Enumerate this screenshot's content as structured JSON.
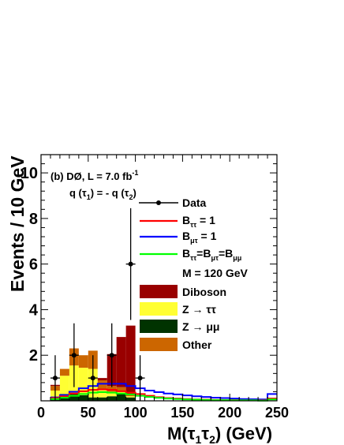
{
  "chart_data": {
    "type": "bar",
    "stacked": true,
    "annotation": {
      "line1": "(b) DØ, L = 7.0 fb",
      "line1_sup": "-1",
      "line2": "q (τ",
      "line2_sub1": "1",
      "line2_mid": ") = - q (τ",
      "line2_sub2": "2",
      "line2_end": ")"
    },
    "ylabel": "Events / 10 GeV",
    "xlabel": {
      "main": "M(τ",
      "sub1": "1",
      "mid": "τ",
      "sub2": "2",
      "end": ") (GeV)"
    },
    "xlim": [
      0,
      250
    ],
    "ylim": [
      0,
      10.8
    ],
    "x_ticks": [
      "0",
      "50",
      "100",
      "150",
      "200",
      "250"
    ],
    "y_ticks": [
      "2",
      "4",
      "6",
      "8",
      "10"
    ],
    "legend": {
      "placement": "right",
      "data_label": "Data",
      "btt": {
        "label": "B",
        "sub": "ττ",
        "end": " = 1",
        "color": "#ff0000"
      },
      "bmt": {
        "label": "B",
        "sub": "μτ",
        "end": " = 1",
        "color": "#0000ff"
      },
      "ball": {
        "label": "B",
        "sub1": "ττ",
        "mid1": "=B",
        "sub2": "μτ",
        "mid2": "=B",
        "sub3": "μμ",
        "color": "#00ff00"
      },
      "mass_label": "M = 120 GeV",
      "diboson": {
        "label": "Diboson",
        "color": "#990000"
      },
      "ztt": {
        "label": "Z → ττ",
        "color": "#ffff33"
      },
      "zmm": {
        "label": "Z → μμ",
        "color": "#003300"
      },
      "other": {
        "label": "Other",
        "color": "#cc6600"
      }
    },
    "bin_width": 10,
    "bin_low_edges": [
      10,
      20,
      30,
      40,
      50,
      60,
      70,
      80,
      90
    ],
    "stack_series": [
      {
        "name": "Z → μμ",
        "color": "#003300",
        "values": [
          0.1,
          0.3,
          0.3,
          0.25,
          0.15,
          0.15,
          0.2,
          0.3,
          0.15
        ]
      },
      {
        "name": "Z → ττ",
        "color": "#ffff33",
        "values": [
          0.35,
          0.8,
          1.25,
          1.2,
          1.25,
          0.35,
          0.2,
          0.1,
          0.05
        ]
      },
      {
        "name": "Other",
        "color": "#cc6600",
        "values": [
          0.2,
          0.3,
          0.75,
          0.55,
          0.8,
          0.4,
          0.25,
          0.2,
          0.1
        ]
      },
      {
        "name": "Diboson",
        "color": "#990000",
        "values": [
          0.05,
          0.0,
          0.0,
          0.0,
          0.0,
          0.1,
          1.4,
          2.2,
          3.0
        ]
      }
    ],
    "signal_series": [
      {
        "name": "Bμτ = 1",
        "color": "#0000ff",
        "x": [
          10,
          20,
          30,
          40,
          50,
          60,
          70,
          80,
          90,
          100,
          110,
          120,
          130,
          140,
          150,
          160,
          170,
          180,
          190,
          200,
          210,
          220,
          230,
          240,
          250
        ],
        "values": [
          0.15,
          0.25,
          0.4,
          0.55,
          0.65,
          0.75,
          0.75,
          0.75,
          0.65,
          0.55,
          0.45,
          0.38,
          0.32,
          0.28,
          0.24,
          0.2,
          0.17,
          0.14,
          0.12,
          0.1,
          0.08,
          0.07,
          0.06,
          0.3,
          0.3
        ]
      },
      {
        "name": "Bττ = 1",
        "color": "#ff0000",
        "x": [
          10,
          20,
          30,
          40,
          50,
          60,
          70,
          80,
          90,
          100,
          110,
          120,
          130,
          140,
          150,
          160,
          170,
          180,
          190,
          200,
          210,
          220,
          230,
          240,
          250
        ],
        "values": [
          0.12,
          0.2,
          0.32,
          0.42,
          0.48,
          0.5,
          0.48,
          0.42,
          0.36,
          0.3,
          0.22,
          0.16,
          0.12,
          0.1,
          0.08,
          0.06,
          0.05,
          0.04,
          0.03,
          0.03,
          0.02,
          0.02,
          0.02,
          0.1,
          0.1
        ]
      },
      {
        "name": "Bττ=Bμτ=Bμμ",
        "color": "#00ff00",
        "x": [
          10,
          20,
          30,
          40,
          50,
          60,
          70,
          80,
          90,
          100,
          110,
          120,
          130,
          140,
          150,
          160,
          170,
          180,
          190,
          200,
          210,
          220,
          230,
          240,
          250
        ],
        "values": [
          0.08,
          0.14,
          0.22,
          0.3,
          0.36,
          0.38,
          0.36,
          0.32,
          0.28,
          0.22,
          0.17,
          0.13,
          0.1,
          0.08,
          0.06,
          0.05,
          0.04,
          0.03,
          0.03,
          0.02,
          0.02,
          0.02,
          0.01,
          0.06,
          0.06
        ]
      }
    ],
    "data_points": [
      {
        "x": 15,
        "y": 1,
        "err": 1
      },
      {
        "x": 35,
        "y": 2,
        "err": 1.4
      },
      {
        "x": 55,
        "y": 1,
        "err": 1
      },
      {
        "x": 75,
        "y": 2,
        "err": 1.4
      },
      {
        "x": 95,
        "y": 6,
        "err": 2.45
      },
      {
        "x": 105,
        "y": 1,
        "err": 1
      }
    ]
  }
}
